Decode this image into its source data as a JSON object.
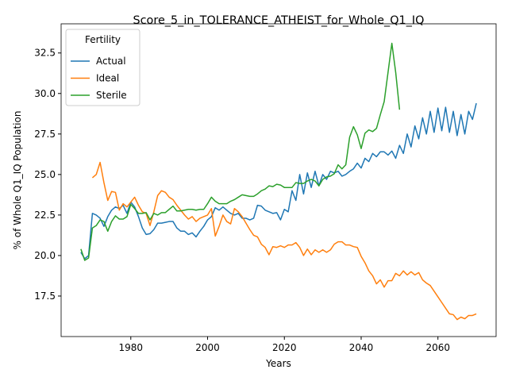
{
  "chart_data": {
    "type": "line",
    "title": "Score_5_in_TOLERANCE_ATHEIST_for_Whole_Q1_IQ",
    "xlabel": "Years",
    "ylabel": "% of Whole Q1_IQ Population",
    "legend_title": "Fertility",
    "legend": "upper left",
    "x": [
      1967,
      1968,
      1969,
      1970,
      1971,
      1972,
      1973,
      1974,
      1975,
      1976,
      1977,
      1978,
      1979,
      1980,
      1981,
      1982,
      1983,
      1984,
      1985,
      1986,
      1987,
      1988,
      1989,
      1990,
      1991,
      1992,
      1993,
      1994,
      1995,
      1996,
      1997,
      1998,
      1999,
      2000,
      2001,
      2002,
      2003,
      2004,
      2005,
      2006,
      2007,
      2008,
      2009,
      2010,
      2011,
      2012,
      2013,
      2014,
      2015,
      2016,
      2017,
      2018,
      2019,
      2020,
      2021,
      2022,
      2023,
      2024,
      2025,
      2026,
      2027,
      2028,
      2029,
      2030,
      2031,
      2032,
      2033,
      2034,
      2035,
      2036,
      2037,
      2038,
      2039,
      2040,
      2041,
      2042,
      2043,
      2044,
      2045,
      2046,
      2047,
      2048,
      2049,
      2050,
      2051,
      2052,
      2053,
      2054,
      2055,
      2056,
      2057,
      2058,
      2059,
      2060,
      2061,
      2062,
      2063,
      2064,
      2065,
      2066,
      2067,
      2068,
      2069,
      2070
    ],
    "series": [
      {
        "name": "Actual",
        "color": "#1f77b4",
        "values": [
          20.2,
          19.8,
          20.0,
          22.6,
          22.5,
          22.3,
          21.8,
          22.4,
          22.8,
          23.0,
          22.9,
          23.1,
          22.6,
          23.3,
          23.0,
          22.4,
          21.7,
          21.3,
          21.35,
          21.6,
          22.0,
          22.0,
          22.05,
          22.1,
          22.1,
          21.7,
          21.5,
          21.5,
          21.3,
          21.4,
          21.15,
          21.5,
          21.8,
          22.2,
          22.4,
          22.95,
          22.8,
          23.0,
          22.8,
          22.6,
          22.5,
          22.6,
          22.3,
          22.3,
          22.2,
          22.3,
          23.1,
          23.05,
          22.8,
          22.7,
          22.6,
          22.65,
          22.2,
          22.85,
          22.7,
          24.0,
          23.4,
          25.0,
          23.8,
          25.1,
          24.2,
          25.2,
          24.3,
          25.0,
          24.7,
          25.2,
          25.1,
          25.2,
          24.9,
          25.0,
          25.2,
          25.35,
          25.7,
          25.4,
          26.0,
          25.8,
          26.3,
          26.1,
          26.4,
          26.4,
          26.2,
          26.45,
          26.0,
          26.8,
          26.3,
          27.5,
          26.7,
          28.0,
          27.2,
          28.5,
          27.5,
          28.9,
          27.6,
          29.1,
          27.7,
          29.15,
          27.6,
          28.9,
          27.4,
          28.7,
          27.5,
          28.9,
          28.4,
          29.4
        ]
      },
      {
        "name": "Ideal",
        "color": "#ff7f0e",
        "values": [
          null,
          null,
          null,
          24.8,
          25.0,
          25.75,
          24.5,
          23.4,
          23.95,
          23.9,
          22.8,
          23.2,
          23.0,
          23.3,
          23.6,
          23.1,
          22.7,
          22.6,
          21.85,
          22.7,
          23.7,
          24.0,
          23.9,
          23.6,
          23.45,
          23.1,
          22.8,
          22.5,
          22.25,
          22.4,
          22.1,
          22.3,
          22.4,
          22.5,
          22.9,
          21.2,
          21.8,
          22.5,
          22.1,
          21.95,
          22.9,
          22.7,
          22.4,
          22.0,
          21.6,
          21.25,
          21.15,
          20.7,
          20.5,
          20.05,
          20.55,
          20.5,
          20.6,
          20.5,
          20.65,
          20.65,
          20.8,
          20.5,
          20.0,
          20.4,
          20.05,
          20.35,
          20.2,
          20.35,
          20.2,
          20.35,
          20.7,
          20.85,
          20.85,
          20.65,
          20.65,
          20.55,
          20.5,
          19.95,
          19.55,
          19.05,
          18.75,
          18.25,
          18.5,
          18.05,
          18.45,
          18.45,
          18.9,
          18.75,
          19.05,
          18.8,
          19.0,
          18.8,
          18.95,
          18.5,
          18.3,
          18.15,
          17.8,
          17.45,
          17.1,
          16.75,
          16.4,
          16.35,
          16.05,
          16.2,
          16.1,
          16.3,
          16.3,
          16.4
        ]
      },
      {
        "name": "Sterile",
        "color": "#2ca02c",
        "values": [
          20.4,
          19.7,
          19.85,
          21.7,
          21.85,
          22.2,
          22.1,
          21.5,
          22.1,
          22.45,
          22.25,
          22.25,
          22.4,
          23.15,
          22.9,
          22.6,
          22.6,
          22.65,
          22.2,
          22.6,
          22.5,
          22.65,
          22.65,
          22.85,
          23.05,
          22.75,
          22.75,
          22.8,
          22.85,
          22.85,
          22.8,
          22.85,
          22.85,
          23.2,
          23.6,
          23.35,
          23.2,
          23.2,
          23.2,
          23.35,
          23.45,
          23.6,
          23.75,
          23.7,
          23.65,
          23.65,
          23.8,
          24.0,
          24.1,
          24.3,
          24.25,
          24.4,
          24.35,
          24.2,
          24.2,
          24.2,
          24.5,
          24.45,
          24.45,
          24.6,
          24.7,
          24.6,
          24.3,
          24.7,
          24.85,
          24.9,
          25.05,
          25.6,
          25.35,
          25.6,
          27.3,
          27.95,
          27.45,
          26.6,
          27.55,
          27.75,
          27.65,
          27.85,
          28.7,
          29.5,
          31.3,
          33.1,
          31.3,
          29.0,
          null,
          null,
          null,
          null,
          null,
          null,
          null,
          null,
          null,
          null,
          null,
          null,
          null,
          null,
          null,
          null,
          null,
          null,
          null,
          null
        ]
      }
    ],
    "xlim": [
      1961.85,
      2075.15
    ],
    "xticks": [
      1980,
      2000,
      2020,
      2040,
      2060
    ],
    "ylim": [
      15.0,
      34.3
    ],
    "yticks": [
      17.5,
      {
        "value": 20,
        "label": "20.0"
      },
      22.5,
      {
        "value": 25,
        "label": "25.0"
      },
      27.5,
      {
        "value": 30,
        "label": "30.0"
      },
      32.5
    ],
    "grid": false
  }
}
